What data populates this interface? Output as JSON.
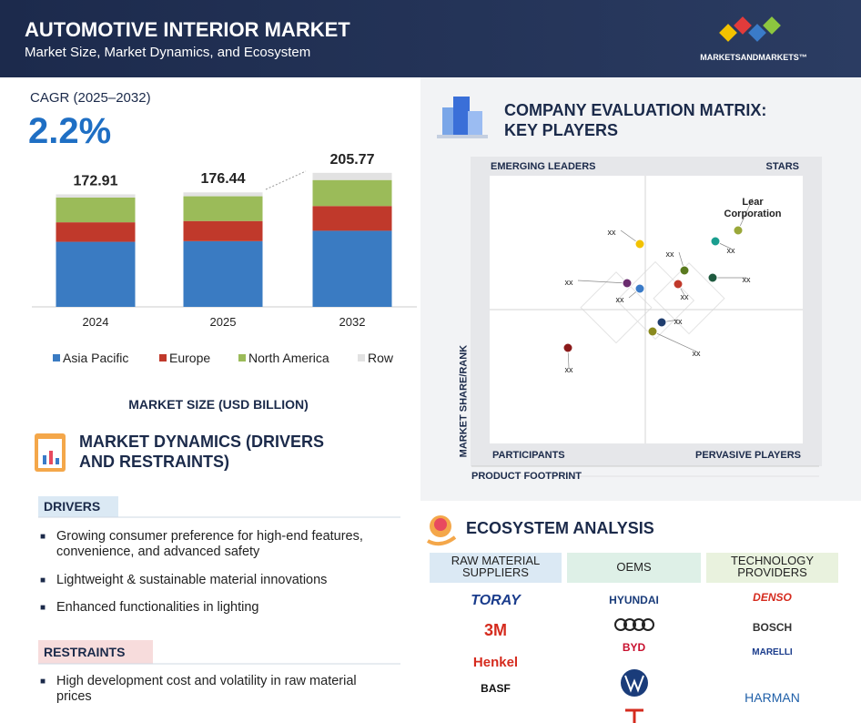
{
  "header": {
    "title": "AUTOMOTIVE INTERIOR MARKET",
    "subtitle": "Market Size, Market Dynamics, and Ecosystem",
    "brand": "MARKETSANDMARKETS™"
  },
  "cagr": {
    "label": "CAGR (2025–2032)",
    "value": "2.2%"
  },
  "chart_data": {
    "type": "stacked_bar",
    "categories": [
      "2024",
      "2025",
      "2032"
    ],
    "totals": [
      172.91,
      176.44,
      205.77
    ],
    "series": [
      {
        "name": "Asia Pacific",
        "color": "#3a7bc2",
        "values": [
          100,
          101,
          117
        ]
      },
      {
        "name": "Europe",
        "color": "#c0392b",
        "values": [
          30,
          31,
          38
        ]
      },
      {
        "name": "North America",
        "color": "#9bbb59",
        "values": [
          38,
          38,
          40
        ]
      },
      {
        "name": "Row",
        "color": "#e2e2e2",
        "values": [
          5,
          6,
          11
        ]
      }
    ],
    "xlabel": "MARKET SIZE (USD BILLION)"
  },
  "dynamics": {
    "title": "MARKET DYNAMICS (DRIVERS AND RESTRAINTS)",
    "drivers": {
      "title": "DRIVERS",
      "items": [
        "Growing consumer preference for high-end features, convenience, and advanced safety",
        "Lightweight & sustainable material innovations",
        "Enhanced functionalities in lighting"
      ]
    },
    "restraints": {
      "title": "RESTRAINTS",
      "items": [
        "High development cost and volatility in raw material prices"
      ]
    }
  },
  "matrix": {
    "title": "COMPANY EVALUATION MATRIX: KEY PLAYERS",
    "quadrants": [
      "EMERGING LEADERS",
      "STARS",
      "PARTICIPANTS",
      "PERVASIVE PLAYERS"
    ],
    "y_label": "MARKET SHARE/RANK",
    "x_label": "PRODUCT FOOTPRINT",
    "points": [
      {
        "label": "Lear Corporation",
        "color": "#9aa83a"
      },
      {
        "label": "xx",
        "color": "#f2c200"
      },
      {
        "label": "xx",
        "color": "#1a9e8f"
      },
      {
        "label": "xx",
        "color": "#5a7a1f"
      },
      {
        "label": "xx",
        "color": "#1f5a3f"
      },
      {
        "label": "xx",
        "color": "#c0392b"
      },
      {
        "label": "xx",
        "color": "#6a2c6e"
      },
      {
        "label": "xx",
        "color": "#3a7bc8"
      },
      {
        "label": "xx",
        "color": "#1f3d6e"
      },
      {
        "label": "xx",
        "color": "#8a8a1f"
      },
      {
        "label": "xx",
        "color": "#8b1a1a"
      }
    ]
  },
  "ecosystem": {
    "title": "ECOSYSTEM ANALYSIS",
    "columns": [
      {
        "title": "RAW MATERIAL SUPPLIERS",
        "items": [
          "TORAY",
          "3M",
          "Henkel",
          "BASF"
        ]
      },
      {
        "title": "OEMS",
        "items": [
          "HYUNDAI",
          "BYD"
        ]
      },
      {
        "title": "TECHNOLOGY PROVIDERS",
        "items": [
          "DENSO",
          "BOSCH",
          "MARELLI",
          "HARMAN"
        ]
      }
    ]
  }
}
